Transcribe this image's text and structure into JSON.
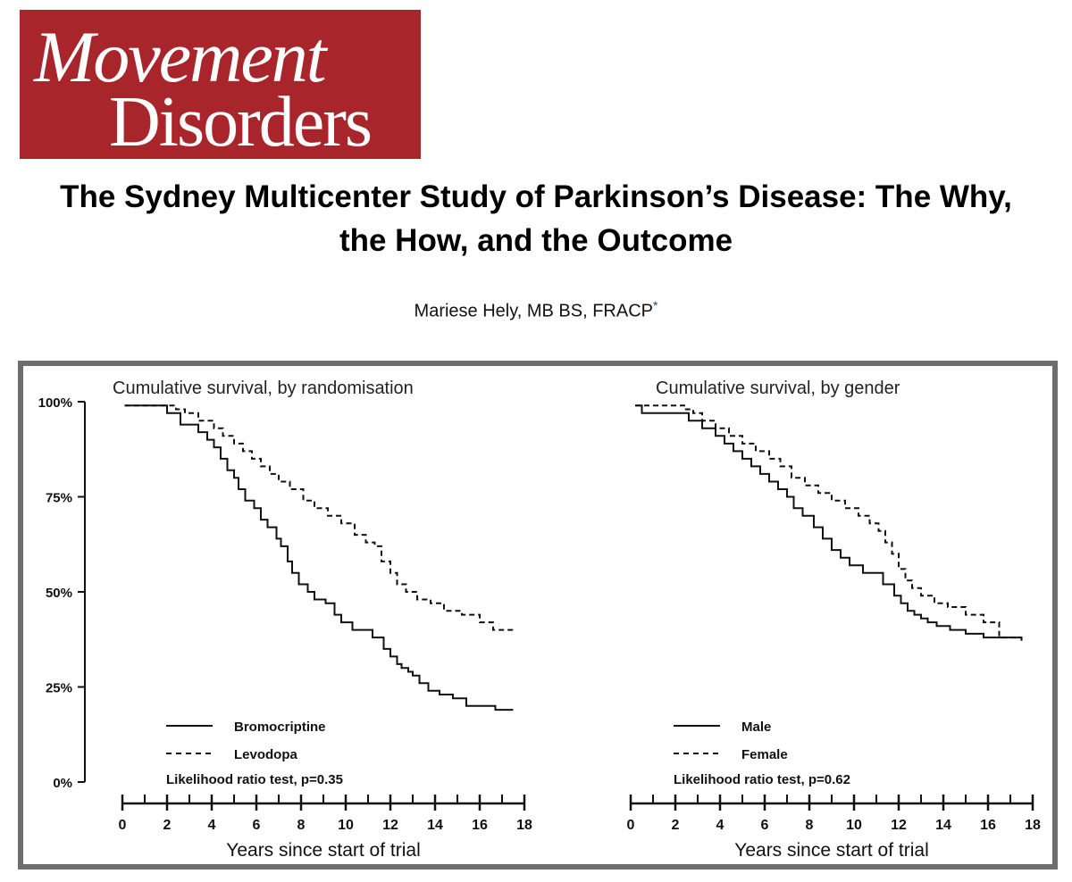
{
  "journal": {
    "line1": "Movement",
    "line2": "Disorders"
  },
  "article": {
    "title_line1": "The Sydney Multicenter Study of Parkinson’s Disease: The Why,",
    "title_line2": "the How, and the Outcome",
    "author": "Mariese Hely, MB BS, FRACP",
    "author_mark": "*"
  },
  "chart_data": [
    {
      "type": "line",
      "title": "Cumulative survival, by randomisation",
      "xlabel": "Years since start of trial",
      "ylabel": "",
      "xlim": [
        0,
        18
      ],
      "ylim": [
        0,
        100
      ],
      "x_ticks": [
        0,
        2,
        4,
        6,
        8,
        10,
        12,
        14,
        16,
        18
      ],
      "y_ticks": [
        0,
        25,
        50,
        75,
        100
      ],
      "y_tick_labels": [
        "0%",
        "25%",
        "50%",
        "75%",
        "100%"
      ],
      "annotation": "Likelihood ratio test, p=0.35",
      "series": [
        {
          "name": "Bromocriptine",
          "style": "solid",
          "x": [
            0.1,
            2.0,
            2.6,
            3.4,
            3.8,
            4.1,
            4.4,
            4.7,
            5.0,
            5.2,
            5.5,
            5.9,
            6.2,
            6.5,
            6.9,
            7.1,
            7.4,
            7.6,
            7.9,
            8.3,
            8.6,
            9.1,
            9.5,
            9.8,
            10.3,
            11.2,
            11.7,
            12.0,
            12.3,
            12.5,
            12.8,
            13.0,
            13.3,
            13.7,
            14.2,
            14.8,
            15.4,
            16.1,
            16.7,
            17.5
          ],
          "y": [
            99,
            97,
            94,
            92,
            90,
            88,
            85,
            82,
            80,
            77,
            74,
            72,
            69,
            67,
            64,
            62,
            58,
            55,
            52,
            50,
            48,
            47,
            44,
            42,
            40,
            38,
            35,
            33,
            31,
            30,
            29,
            28,
            26,
            24,
            23,
            22,
            20,
            20,
            19,
            19
          ]
        },
        {
          "name": "Levodopa",
          "style": "dashed",
          "x": [
            0.1,
            2.4,
            2.8,
            3.4,
            4.1,
            4.5,
            5.0,
            5.4,
            5.8,
            6.2,
            6.6,
            7.0,
            7.5,
            8.1,
            8.6,
            9.2,
            9.8,
            10.4,
            10.9,
            11.3,
            11.6,
            12.0,
            12.3,
            12.7,
            13.2,
            13.8,
            14.4,
            15.2,
            16.0,
            16.6,
            17.5
          ],
          "y": [
            99,
            98,
            97,
            95,
            93,
            91,
            89,
            87,
            85,
            83,
            81,
            79,
            77,
            74,
            72,
            70,
            68,
            65,
            63,
            62,
            58,
            55,
            52,
            50,
            48,
            47,
            45,
            44,
            42,
            40,
            40
          ]
        }
      ]
    },
    {
      "type": "line",
      "title": "Cumulative survival, by gender",
      "xlabel": "Years since start of trial",
      "ylabel": "",
      "xlim": [
        0,
        18
      ],
      "ylim": [
        0,
        100
      ],
      "x_ticks": [
        0,
        2,
        4,
        6,
        8,
        10,
        12,
        14,
        16,
        18
      ],
      "y_ticks": [
        0,
        25,
        50,
        75,
        100
      ],
      "annotation": "Likelihood ratio test, p=0.62",
      "series": [
        {
          "name": "Male",
          "style": "solid",
          "x": [
            0.2,
            0.5,
            2.6,
            3.2,
            3.8,
            4.2,
            4.6,
            5.0,
            5.4,
            5.8,
            6.2,
            6.6,
            7.0,
            7.3,
            7.7,
            8.2,
            8.6,
            9.0,
            9.4,
            9.8,
            10.4,
            11.3,
            11.8,
            12.1,
            12.4,
            12.7,
            13.0,
            13.3,
            13.7,
            14.3,
            15.0,
            15.8,
            16.6,
            17.5
          ],
          "y": [
            99,
            97,
            95,
            93,
            91,
            89,
            87,
            85,
            83,
            81,
            79,
            77,
            75,
            72,
            70,
            67,
            64,
            61,
            59,
            57,
            55,
            52,
            49,
            47,
            45,
            44,
            43,
            42,
            41,
            40,
            39,
            38,
            38,
            38
          ]
        },
        {
          "name": "Female",
          "style": "dashed",
          "x": [
            0.2,
            2.4,
            2.8,
            3.2,
            3.8,
            4.4,
            5.0,
            5.6,
            6.2,
            6.7,
            7.2,
            7.8,
            8.4,
            9.0,
            9.6,
            10.2,
            10.7,
            11.1,
            11.4,
            11.7,
            12.0,
            12.3,
            12.6,
            13.0,
            13.6,
            14.2,
            15.0,
            15.8,
            16.5,
            17.5
          ],
          "y": [
            99,
            98,
            97,
            95,
            93,
            91,
            89,
            87,
            85,
            83,
            80,
            78,
            76,
            74,
            72,
            70,
            68,
            66,
            63,
            60,
            56,
            53,
            51,
            49,
            47,
            46,
            44,
            42,
            38,
            37
          ]
        }
      ]
    }
  ]
}
